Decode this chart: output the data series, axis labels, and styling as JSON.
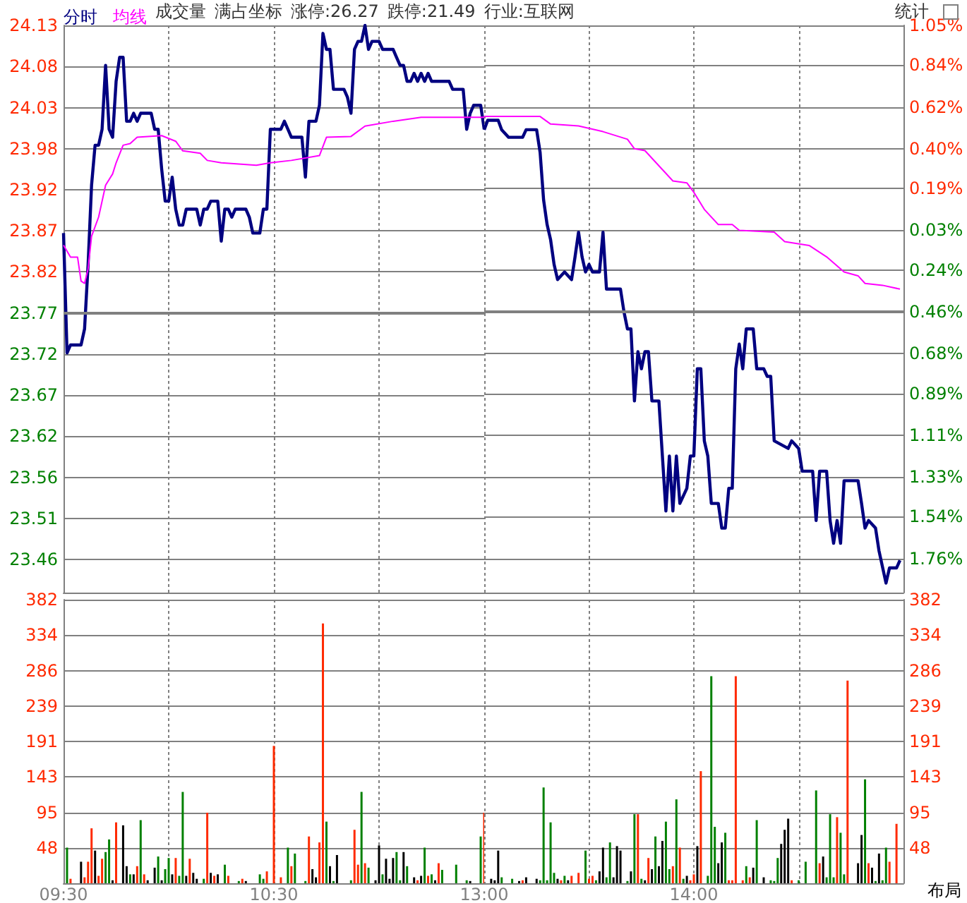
{
  "chart_data": [
    {
      "type": "line",
      "xlim": [
        9.5,
        11.5
      ],
      "xticks": [
        {
          "value": 9.5,
          "label": null
        },
        {
          "value": 10,
          "label": null
        },
        {
          "value": 10.5,
          "label": null
        },
        {
          "value": 11,
          "label": null
        }
      ],
      "ylim": [
        23.42,
        24.13
      ],
      "yticks": [
        24.13,
        {
          "value": 24.0786,
          "label": "24.08"
        },
        {
          "value": 24.0271,
          "label": "24.03"
        },
        {
          "value": 23.9757,
          "label": "23.98"
        },
        {
          "value": 23.9243,
          "label": "23.92"
        },
        {
          "value": 23.8729,
          "label": "23.87"
        },
        {
          "value": 23.8214,
          "label": "23.82"
        },
        23.77,
        {
          "value": 23.7186,
          "label": "23.72"
        },
        {
          "value": 23.6671,
          "label": "23.67"
        },
        {
          "value": 23.6157,
          "label": "23.62"
        },
        {
          "value": 23.5643,
          "label": "23.56"
        },
        {
          "value": 23.5129,
          "label": "23.51"
        },
        {
          "value": 23.4614,
          "label": "23.46"
        }
      ],
      "tick_labels": "y",
      "grid": true,
      "legend": "top left",
      "marker": "none",
      "annotations": [
        "成交量",
        "满占坐标",
        "涨停:26.27",
        "跌停:21.49",
        "行业:互联网",
        "统计"
      ],
      "ref_lines": [
        {
          "axis": "y",
          "value": 23.77,
          "color": "#808080"
        }
      ],
      "series": [
        {
          "name": "分时",
          "color": "#000080",
          "x": [
            9.5,
            9.5167,
            9.5333,
            9.5833,
            9.6,
            9.6167,
            9.6333,
            9.65,
            9.6667,
            9.6833,
            9.7,
            9.7167,
            9.7333,
            9.75,
            9.7667,
            9.7833,
            9.8,
            9.8167,
            9.8333,
            9.85,
            9.8667,
            9.9167,
            9.9333,
            9.95,
            9.9667,
            9.9833,
            10,
            10.0167,
            10.0333,
            10.05,
            10.0667,
            10.0833,
            10.1333,
            10.15,
            10.1667,
            10.1833,
            10.2,
            10.2333,
            10.25,
            10.2667,
            10.2833,
            10.3,
            10.3167,
            10.3667,
            10.3833,
            10.4,
            10.4333,
            10.45,
            10.4667,
            10.4833,
            10.5333,
            10.55,
            10.5667,
            10.5833,
            10.6333,
            10.65,
            10.6667,
            10.7,
            10.7167,
            10.7333,
            10.75,
            10.7667,
            10.7833,
            10.8333,
            10.85,
            10.8667,
            10.8833,
            10.9,
            10.9167,
            10.9333,
            10.95,
            10.9667,
            11,
            11.0167,
            11.0667,
            11.0833,
            11.1,
            11.1167,
            11.1333,
            11.15,
            11.1667,
            11.1833,
            11.2,
            11.2167,
            11.2333,
            11.25,
            11.3333,
            11.35,
            11.4,
            11.4167,
            11.4333,
            11.45,
            11.4833,
            11.5
          ],
          "values": [
            23.87,
            23.72,
            23.73,
            23.73,
            23.75,
            23.83,
            23.93,
            23.98,
            23.98,
            24.0,
            24.08,
            24.0,
            23.99,
            24.06,
            24.09,
            24.09,
            24.01,
            24.01,
            24.02,
            24.01,
            24.02,
            24.02,
            24.0,
            24.0,
            23.95,
            23.91,
            23.91,
            23.94,
            23.9,
            23.88,
            23.88,
            23.9,
            23.9,
            23.88,
            23.9,
            23.9,
            23.91,
            23.91,
            23.86,
            23.9,
            23.9,
            23.89,
            23.9,
            23.9,
            23.89,
            23.87,
            23.87,
            23.9,
            23.9,
            24.0,
            24.0,
            24.01,
            24.0,
            23.99,
            23.99,
            23.94,
            24.01,
            24.01,
            24.03,
            24.12,
            24.1,
            24.1,
            24.05,
            24.05,
            24.04,
            24.02,
            24.1,
            24.11,
            24.11,
            24.13,
            24.1,
            24.11,
            24.11,
            24.1,
            24.1,
            24.09,
            24.08,
            24.08,
            24.06,
            24.06,
            24.07,
            24.06,
            24.07,
            24.06,
            24.07,
            24.06,
            24.06,
            24.05,
            24.05,
            24.0,
            24.02,
            24.03,
            24.03,
            24.0
          ]
        },
        {
          "name": "均线",
          "color": "#ff00ff",
          "x": [
            9.5,
            9.5333,
            9.5667,
            9.5833,
            9.6,
            9.6167,
            9.6333,
            9.6667,
            9.7,
            9.7333,
            9.75,
            9.7833,
            9.8167,
            9.85,
            9.9667,
            10.0333,
            10.0667,
            10.15,
            10.1833,
            10.25,
            10.4167,
            10.4833,
            10.5833,
            10.7167,
            10.75,
            10.8667,
            10.9333,
            11.0667,
            11.2,
            11.5
          ],
          "values": [
            23.855,
            23.84,
            23.84,
            23.81,
            23.807,
            23.825,
            23.866,
            23.89,
            23.93,
            23.944,
            23.958,
            23.98,
            23.982,
            23.99,
            23.992,
            23.985,
            23.973,
            23.97,
            23.961,
            23.958,
            23.955,
            23.958,
            23.961,
            23.967,
            23.99,
            23.991,
            24.004,
            24.01,
            24.015,
            24.015
          ]
        }
      ]
    },
    {
      "type": "line",
      "xlim": [
        13,
        15
      ],
      "xticks": [
        {
          "value": 13,
          "label": null
        },
        {
          "value": 13.5,
          "label": null
        },
        {
          "value": 14,
          "label": null
        },
        {
          "value": 14.5,
          "label": null
        },
        {
          "value": 15,
          "label": null
        }
      ],
      "y2lim": [
        -1.94,
        1.05
      ],
      "y2ticks": [
        {
          "value": 1.05,
          "label": "1.05%"
        },
        {
          "value": 0.84,
          "label": "0.84%"
        },
        {
          "value": 0.62,
          "label": "0.62%"
        },
        {
          "value": 0.4,
          "label": "0.40%"
        },
        {
          "value": 0.19,
          "label": "0.19%"
        },
        {
          "value": -0.03,
          "label": "0.03%"
        },
        {
          "value": -0.24,
          "label": "0.24%"
        },
        {
          "value": -0.46,
          "label": "0.46%"
        },
        {
          "value": -0.68,
          "label": "0.68%"
        },
        {
          "value": -0.89,
          "label": "0.89%"
        },
        {
          "value": -1.11,
          "label": "1.11%"
        },
        {
          "value": -1.33,
          "label": "1.33%"
        },
        {
          "value": -1.54,
          "label": "1.54%"
        },
        {
          "value": -1.76,
          "label": "1.76%"
        }
      ],
      "tick_labels": "y",
      "grid": true,
      "marker": "none",
      "ref_lines": [
        {
          "axis": "y2",
          "value": -0.46,
          "color": "#808080"
        }
      ],
      "series": [
        {
          "axis": "y2",
          "color": "#000080",
          "x": [
            13,
            13.0167,
            13.0667,
            13.0833,
            13.1167,
            13.1833,
            13.2,
            13.25,
            13.2667,
            13.2833,
            13.3,
            13.3167,
            13.3333,
            13.35,
            13.3833,
            13.4167,
            13.4333,
            13.45,
            13.4667,
            13.4833,
            13.5,
            13.5167,
            13.55,
            13.5667,
            13.5833,
            13.65,
            13.6667,
            13.6833,
            13.7,
            13.7167,
            13.7333,
            13.75,
            13.7667,
            13.7833,
            13.8,
            13.8333,
            13.85,
            13.8667,
            13.8833,
            13.9,
            13.9167,
            13.9333,
            13.95,
            13.9667,
            13.9833,
            14,
            14.0167,
            14.0333,
            14.05,
            14.0667,
            14.0833,
            14.1167,
            14.1333,
            14.15,
            14.1667,
            14.1833,
            14.2,
            14.2167,
            14.2333,
            14.25,
            14.2833,
            14.3,
            14.3333,
            14.35,
            14.3667,
            14.3833,
            14.45,
            14.4667,
            14.5,
            14.5167,
            14.5667,
            14.5833,
            14.6,
            14.6333,
            14.65,
            14.6667,
            14.6833,
            14.7,
            14.7167,
            14.7833,
            14.8,
            14.8167,
            14.8333,
            14.8667,
            14.8833,
            14.9167,
            14.9333,
            14.9667,
            14.9833
          ],
          "values": [
            0.5,
            0.55,
            0.55,
            0.5,
            0.46,
            0.46,
            0.5,
            0.5,
            0.38,
            0.13,
            0.0,
            -0.08,
            -0.21,
            -0.29,
            -0.25,
            -0.29,
            -0.17,
            -0.04,
            -0.17,
            -0.25,
            -0.21,
            -0.25,
            -0.25,
            -0.04,
            -0.34,
            -0.34,
            -0.46,
            -0.55,
            -0.55,
            -0.93,
            -0.67,
            -0.76,
            -0.67,
            -0.67,
            -0.93,
            -0.93,
            -1.22,
            -1.51,
            -1.22,
            -1.51,
            -1.22,
            -1.47,
            -1.43,
            -1.39,
            -1.22,
            -1.22,
            -0.76,
            -0.76,
            -1.14,
            -1.22,
            -1.47,
            -1.47,
            -1.6,
            -1.6,
            -1.39,
            -1.39,
            -0.76,
            -0.63,
            -0.76,
            -0.55,
            -0.55,
            -0.76,
            -0.76,
            -0.8,
            -0.8,
            -1.14,
            -1.18,
            -1.14,
            -1.18,
            -1.3,
            -1.3,
            -1.56,
            -1.3,
            -1.3,
            -1.56,
            -1.68,
            -1.56,
            -1.68,
            -1.35,
            -1.35,
            -1.47,
            -1.6,
            -1.56,
            -1.6,
            -1.72,
            -1.89,
            -1.81,
            -1.81,
            -1.77
          ]
        },
        {
          "axis": "y2",
          "color": "#ff00ff",
          "x": [
            13,
            13.0167,
            13.2667,
            13.3167,
            13.45,
            13.5667,
            13.6833,
            13.7167,
            13.7667,
            13.8333,
            13.9,
            13.9667,
            14,
            14.05,
            14.1167,
            14.1833,
            14.2167,
            14.3833,
            14.4333,
            14.55,
            14.6333,
            14.7167,
            14.7833,
            14.8167,
            14.9,
            14.9833
          ],
          "values": [
            0.57,
            0.57,
            0.57,
            0.53,
            0.52,
            0.49,
            0.45,
            0.4,
            0.39,
            0.31,
            0.23,
            0.22,
            0.17,
            0.08,
            0.0,
            0.0,
            -0.03,
            -0.04,
            -0.09,
            -0.11,
            -0.17,
            -0.25,
            -0.27,
            -0.31,
            -0.32,
            -0.34
          ]
        }
      ]
    },
    {
      "type": "bar",
      "xlim": [
        9.5,
        11.5
      ],
      "xticks": [
        {
          "value": 9.5,
          "label": "09:30"
        },
        {
          "value": 10,
          "label": null
        },
        {
          "value": 10.5,
          "label": "10:30"
        },
        {
          "value": 11,
          "label": null
        }
      ],
      "ylim": [
        0,
        382
      ],
      "yticks": [
        {
          "value": 47.75,
          "label": "48"
        },
        {
          "value": 95.5,
          "label": "95"
        },
        {
          "value": 143.25,
          "label": "143"
        },
        191,
        {
          "value": 238.75,
          "label": "239"
        },
        {
          "value": 286.5,
          "label": "286"
        },
        {
          "value": 334.25,
          "label": "334"
        },
        382
      ],
      "grid": true,
      "series": [
        {
          "x": [
            9.5167,
            9.5333,
            9.5833,
            9.6,
            9.6167,
            9.6333,
            9.65,
            9.6667,
            9.6833,
            9.7,
            9.7167,
            9.7333,
            9.75,
            9.7833,
            9.8,
            9.8167,
            9.8333,
            9.85,
            9.8667,
            9.8833,
            9.9,
            9.9333,
            9.95,
            9.9667,
            9.9833,
            10,
            10.0167,
            10.0333,
            10.05,
            10.0667,
            10.0833,
            10.1,
            10.1167,
            10.1333,
            10.1667,
            10.1833,
            10.2,
            10.2167,
            10.2333,
            10.2667,
            10.2833,
            10.3333,
            10.35,
            10.3667,
            10.4333,
            10.45,
            10.4667,
            10.5,
            10.5333,
            10.5667,
            10.5833,
            10.6,
            10.65,
            10.6667,
            10.6833,
            10.7,
            10.7167,
            10.7333,
            10.75,
            10.7667,
            10.7833,
            10.8,
            10.8667,
            10.8833,
            10.9,
            10.9167,
            10.9333,
            10.95,
            10.9833,
            11,
            11.0167,
            11.0333,
            11.05,
            11.0667,
            11.0833,
            11.1,
            11.1167,
            11.1333,
            11.1667,
            11.1833,
            11.2,
            11.2167,
            11.2333,
            11.25,
            11.2667,
            11.2833,
            11.3,
            11.3667,
            11.4167,
            11.4333,
            11.4833,
            11.5
          ],
          "values": [
            48,
            6,
            29,
            8,
            29,
            74,
            44,
            10,
            33,
            42,
            59,
            4,
            82,
            78,
            23,
            12,
            12,
            23,
            85,
            12,
            4,
            21,
            36,
            4,
            19,
            34,
            12,
            34,
            10,
            123,
            10,
            33,
            14,
            6,
            6,
            95,
            14,
            10,
            12,
            25,
            10,
            3,
            6,
            3,
            12,
            6,
            16,
            185,
            8,
            48,
            23,
            40,
            3,
            63,
            19,
            8,
            55,
            350,
            83,
            23,
            3,
            38,
            4,
            72,
            25,
            123,
            27,
            21,
            4,
            51,
            12,
            33,
            6,
            34,
            42,
            4,
            42,
            23,
            8,
            4,
            10,
            48,
            10,
            12,
            4,
            27,
            18,
            25,
            4,
            3,
            63,
            95
          ],
          "colors": [
            "#008000",
            "#ff2a00",
            "#000000",
            "#ff2a00",
            "#ff2a00",
            "#ff2a00",
            "#000000",
            "#ff2a00",
            "#ff2a00",
            "#008000",
            "#008000",
            "#000000",
            "#ff2a00",
            "#000000",
            "#000000",
            "#008000",
            "#000000",
            "#ff2a00",
            "#008000",
            "#ff2a00",
            "#000000",
            "#000000",
            "#008000",
            "#000000",
            "#008000",
            "#008000",
            "#000000",
            "#ff2a00",
            "#008000",
            "#008000",
            "#000000",
            "#ff2a00",
            "#000000",
            "#000000",
            "#008000",
            "#ff2a00",
            "#000000",
            "#ff2a00",
            "#000000",
            "#008000",
            "#ff2a00",
            "#008000",
            "#ff2a00",
            "#000000",
            "#008000",
            "#008000",
            "#ff2a00",
            "#ff2a00",
            "#ff2a00",
            "#008000",
            "#ff2a00",
            "#008000",
            "#008000",
            "#ff2a00",
            "#000000",
            "#000000",
            "#ff2a00",
            "#ff2a00",
            "#008000",
            "#000000",
            "#008000",
            "#000000",
            "#008000",
            "#ff2a00",
            "#ff2a00",
            "#008000",
            "#ff2a00",
            "#008000",
            "#000000",
            "#000000",
            "#008000",
            "#000000",
            "#000000",
            "#000000",
            "#008000",
            "#008000",
            "#000000",
            "#008000",
            "#000000",
            "#ff2a00",
            "#000000",
            "#008000",
            "#ff2a00",
            "#008000",
            "#000000",
            "#ff2a00",
            "#008000",
            "#008000",
            "#008000",
            "#000000",
            "#008000",
            "#ff2a00"
          ]
        }
      ]
    },
    {
      "type": "bar",
      "xlim": [
        13,
        15
      ],
      "xticks": [
        {
          "value": 13,
          "label": "13:00"
        },
        {
          "value": 13.5,
          "label": null
        },
        {
          "value": 14,
          "label": "14:00"
        },
        {
          "value": 14.5,
          "label": null
        },
        {
          "value": 15,
          "label": null
        }
      ],
      "y2lim": [
        0,
        382
      ],
      "y2ticks": [
        {
          "value": 47.75,
          "label": "48"
        },
        {
          "value": 95.5,
          "label": "95"
        },
        {
          "value": 143.25,
          "label": "143"
        },
        191,
        {
          "value": 238.75,
          "label": "239"
        },
        {
          "value": 286.5,
          "label": "286"
        },
        {
          "value": 334.25,
          "label": "334"
        },
        382
      ],
      "grid": true,
      "annotations": [
        "布局"
      ],
      "series": [
        {
          "axis": "y2",
          "x": [
            13.0333,
            13.05,
            13.0667,
            13.0833,
            13.1333,
            13.1667,
            13.1833,
            13.2,
            13.25,
            13.2667,
            13.2833,
            13.3,
            13.3167,
            13.3333,
            13.35,
            13.3667,
            13.3833,
            13.4,
            13.4167,
            13.45,
            13.4833,
            13.5,
            13.5167,
            13.5333,
            13.55,
            13.5667,
            13.5833,
            13.6,
            13.6167,
            13.6333,
            13.65,
            13.6833,
            13.7,
            13.7167,
            13.7333,
            13.75,
            13.7667,
            13.7833,
            13.8,
            13.8167,
            13.8333,
            13.85,
            13.8667,
            13.8833,
            13.9,
            13.9167,
            13.9333,
            13.95,
            13.9667,
            13.9833,
            14,
            14.0167,
            14.0333,
            14.0667,
            14.0833,
            14.1,
            14.1167,
            14.1333,
            14.15,
            14.1667,
            14.1833,
            14.2,
            14.2333,
            14.25,
            14.2667,
            14.2833,
            14.3,
            14.3333,
            14.3667,
            14.3833,
            14.4,
            14.4167,
            14.4333,
            14.45,
            14.4667,
            14.5,
            14.5333,
            14.5833,
            14.6,
            14.6167,
            14.6333,
            14.65,
            14.6667,
            14.6833,
            14.7,
            14.7167,
            14.7333,
            14.7833,
            14.8,
            14.8167,
            14.8333,
            14.85,
            14.8667,
            14.8833,
            14.9,
            14.9167,
            14.9333,
            14.9667
          ],
          "values": [
            6,
            4,
            44,
            8,
            6,
            3,
            4,
            8,
            6,
            4,
            129,
            4,
            82,
            14,
            6,
            4,
            10,
            4,
            10,
            14,
            44,
            6,
            10,
            4,
            16,
            48,
            8,
            55,
            8,
            50,
            44,
            3,
            16,
            93,
            93,
            6,
            4,
            34,
            19,
            63,
            23,
            57,
            83,
            19,
            23,
            113,
            48,
            6,
            10,
            4,
            12,
            50,
            151,
            10,
            279,
            76,
            27,
            55,
            68,
            4,
            4,
            279,
            4,
            23,
            8,
            21,
            85,
            8,
            4,
            3,
            34,
            53,
            72,
            87,
            4,
            4,
            29,
            125,
            27,
            36,
            8,
            93,
            8,
            89,
            68,
            12,
            273,
            27,
            65,
            140,
            27,
            21,
            3,
            40,
            4,
            48,
            29,
            80
          ],
          "colors": [
            "#000000",
            "#000000",
            "#000000",
            "#008000",
            "#008000",
            "#000000",
            "#ff2a00",
            "#000000",
            "#000000",
            "#008000",
            "#008000",
            "#008000",
            "#008000",
            "#008000",
            "#000000",
            "#ff2a00",
            "#008000",
            "#000000",
            "#ff2a00",
            "#ff2a00",
            "#008000",
            "#ff2a00",
            "#ff2a00",
            "#008000",
            "#000000",
            "#000000",
            "#008000",
            "#008000",
            "#000000",
            "#000000",
            "#000000",
            "#008000",
            "#000000",
            "#008000",
            "#ff2a00",
            "#008000",
            "#000000",
            "#ff2a00",
            "#000000",
            "#008000",
            "#000000",
            "#000000",
            "#008000",
            "#008000",
            "#ff2a00",
            "#008000",
            "#ff2a00",
            "#008000",
            "#000000",
            "#ff2a00",
            "#ff2a00",
            "#000000",
            "#ff2a00",
            "#008000",
            "#008000",
            "#008000",
            "#000000",
            "#000000",
            "#008000",
            "#ff2a00",
            "#ff2a00",
            "#ff2a00",
            "#ff2a00",
            "#008000",
            "#ff2a00",
            "#000000",
            "#008000",
            "#000000",
            "#008000",
            "#008000",
            "#008000",
            "#000000",
            "#000000",
            "#000000",
            "#ff2a00",
            "#008000",
            "#008000",
            "#008000",
            "#ff2a00",
            "#000000",
            "#008000",
            "#008000",
            "#008000",
            "#ff2a00",
            "#008000",
            "#008000",
            "#ff2a00",
            "#000000",
            "#000000",
            "#008000",
            "#ff2a00",
            "#000000",
            "#008000",
            "#000000",
            "#008000",
            "#008000",
            "#ff2a00",
            "#ff2a00"
          ]
        }
      ]
    }
  ]
}
